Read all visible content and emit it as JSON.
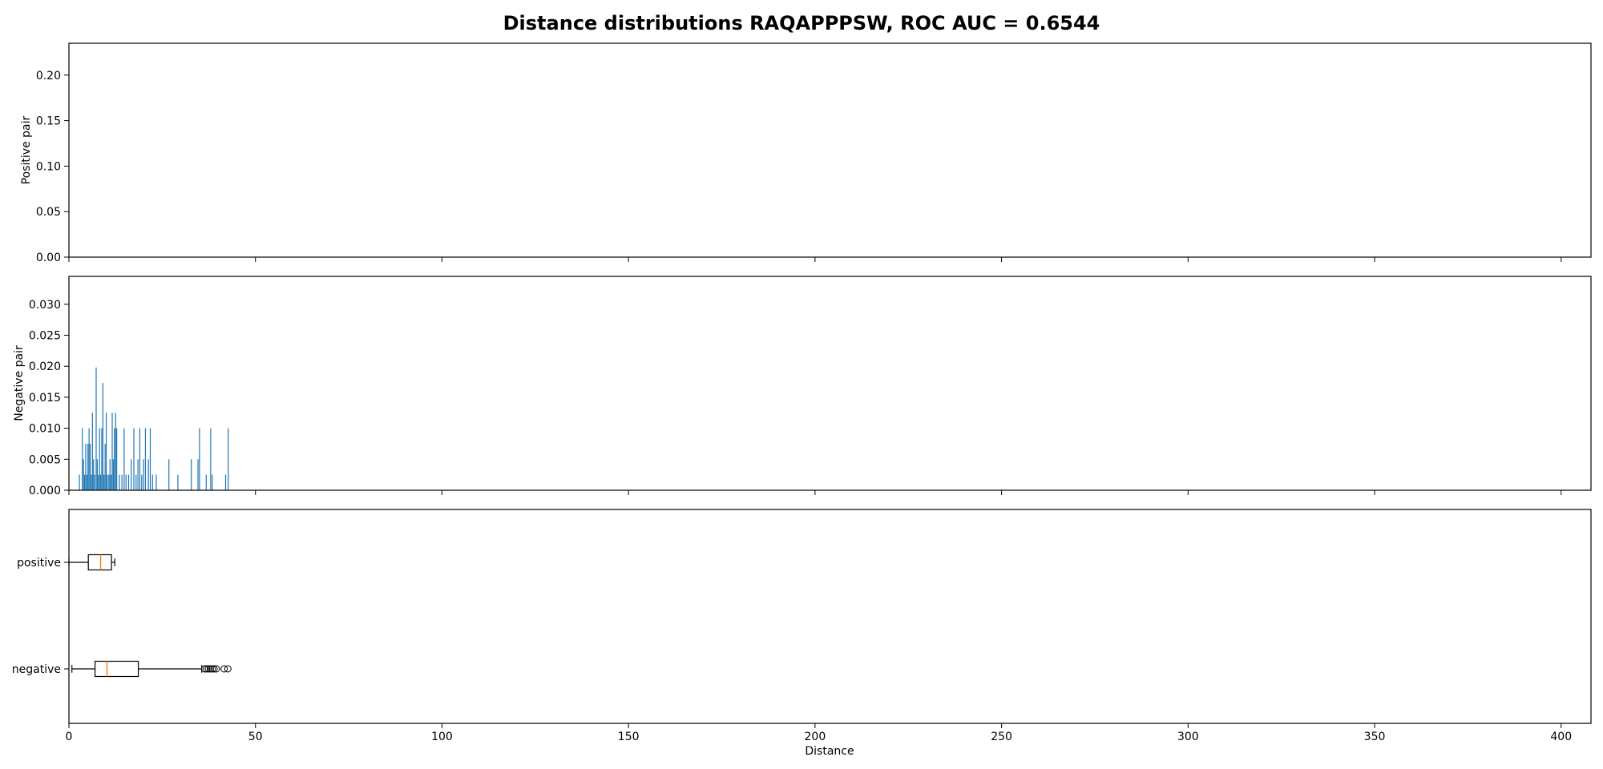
{
  "title": "Distance distributions RAQAPPPSW, ROC AUC = 0.6544",
  "chart_data": [
    {
      "type": "bar",
      "panel": "positive-histogram",
      "ylabel": "Positive pair",
      "xlim": [
        0,
        408
      ],
      "ylim": [
        0,
        0.235
      ],
      "yticks": [
        0.0,
        0.05,
        0.1,
        0.15,
        0.2
      ],
      "ytick_labels": [
        "0.00",
        "0.05",
        "0.10",
        "0.15",
        "0.20"
      ],
      "bar_color": "#1f77b4",
      "bars": []
    },
    {
      "type": "bar",
      "panel": "negative-histogram",
      "ylabel": "Negative pair",
      "xlim": [
        0,
        408
      ],
      "ylim": [
        0,
        0.0345
      ],
      "yticks": [
        0.0,
        0.005,
        0.01,
        0.015,
        0.02,
        0.025,
        0.03
      ],
      "ytick_labels": [
        "0.000",
        "0.005",
        "0.010",
        "0.015",
        "0.020",
        "0.025",
        "0.030"
      ],
      "bar_color": "#1f77b4",
      "bar_width": 0.25,
      "bars": [
        {
          "x": 2.8,
          "y": 0.0025
        },
        {
          "x": 3.6,
          "y": 0.01
        },
        {
          "x": 3.9,
          "y": 0.005
        },
        {
          "x": 4.2,
          "y": 0.0025
        },
        {
          "x": 4.5,
          "y": 0.0075
        },
        {
          "x": 4.8,
          "y": 0.0025
        },
        {
          "x": 5.1,
          "y": 0.0075
        },
        {
          "x": 5.4,
          "y": 0.01
        },
        {
          "x": 5.7,
          "y": 0.0075
        },
        {
          "x": 6.0,
          "y": 0.0025
        },
        {
          "x": 6.3,
          "y": 0.0125
        },
        {
          "x": 6.6,
          "y": 0.005
        },
        {
          "x": 6.9,
          "y": 0.0025
        },
        {
          "x": 7.3,
          "y": 0.0198
        },
        {
          "x": 7.6,
          "y": 0.005
        },
        {
          "x": 7.9,
          "y": 0.0025
        },
        {
          "x": 8.2,
          "y": 0.01
        },
        {
          "x": 8.5,
          "y": 0.0025
        },
        {
          "x": 8.8,
          "y": 0.01
        },
        {
          "x": 9.1,
          "y": 0.0173
        },
        {
          "x": 9.4,
          "y": 0.0025
        },
        {
          "x": 9.7,
          "y": 0.0075
        },
        {
          "x": 10.0,
          "y": 0.0125
        },
        {
          "x": 10.3,
          "y": 0.0025
        },
        {
          "x": 10.7,
          "y": 0.0025
        },
        {
          "x": 11.0,
          "y": 0.005
        },
        {
          "x": 11.3,
          "y": 0.0025
        },
        {
          "x": 11.6,
          "y": 0.0125
        },
        {
          "x": 11.9,
          "y": 0.005
        },
        {
          "x": 12.2,
          "y": 0.01
        },
        {
          "x": 12.5,
          "y": 0.0125
        },
        {
          "x": 12.8,
          "y": 0.01
        },
        {
          "x": 13.5,
          "y": 0.0025
        },
        {
          "x": 14.2,
          "y": 0.0025
        },
        {
          "x": 14.8,
          "y": 0.01
        },
        {
          "x": 15.3,
          "y": 0.0025
        },
        {
          "x": 16.0,
          "y": 0.0025
        },
        {
          "x": 16.7,
          "y": 0.005
        },
        {
          "x": 17.4,
          "y": 0.01
        },
        {
          "x": 18.0,
          "y": 0.0025
        },
        {
          "x": 18.5,
          "y": 0.005
        },
        {
          "x": 19.0,
          "y": 0.01
        },
        {
          "x": 19.5,
          "y": 0.0025
        },
        {
          "x": 20.0,
          "y": 0.005
        },
        {
          "x": 20.5,
          "y": 0.01
        },
        {
          "x": 21.3,
          "y": 0.005
        },
        {
          "x": 21.8,
          "y": 0.01
        },
        {
          "x": 22.4,
          "y": 0.0025
        },
        {
          "x": 23.4,
          "y": 0.0025
        },
        {
          "x": 26.8,
          "y": 0.005
        },
        {
          "x": 29.2,
          "y": 0.0025
        },
        {
          "x": 32.8,
          "y": 0.005
        },
        {
          "x": 34.6,
          "y": 0.005
        },
        {
          "x": 35.0,
          "y": 0.01
        },
        {
          "x": 36.8,
          "y": 0.0025
        },
        {
          "x": 38.0,
          "y": 0.01
        },
        {
          "x": 38.4,
          "y": 0.0025
        },
        {
          "x": 42.0,
          "y": 0.0025
        },
        {
          "x": 42.7,
          "y": 0.01
        }
      ]
    },
    {
      "type": "box",
      "panel": "boxplot",
      "xlabel": "Distance",
      "xlim": [
        0,
        408
      ],
      "xticks": [
        0,
        50,
        100,
        150,
        200,
        250,
        300,
        350,
        400
      ],
      "xtick_labels": [
        "0",
        "50",
        "100",
        "150",
        "200",
        "250",
        "300",
        "350",
        "400"
      ],
      "box_color": "#000000",
      "median_color": "#ff7f0e",
      "series": [
        {
          "name": "positive",
          "whisker_low": 0,
          "q1": 5.2,
          "median": 8.5,
          "q3": 11.4,
          "whisker_high": 12.3,
          "outliers": []
        },
        {
          "name": "negative",
          "whisker_low": 0.8,
          "q1": 7.0,
          "median": 10.2,
          "q3": 18.6,
          "whisker_high": 35.6,
          "outliers": [
            36.4,
            36.9,
            37.4,
            37.9,
            38.4,
            38.9,
            39.5,
            41.6,
            42.6
          ]
        }
      ]
    }
  ]
}
